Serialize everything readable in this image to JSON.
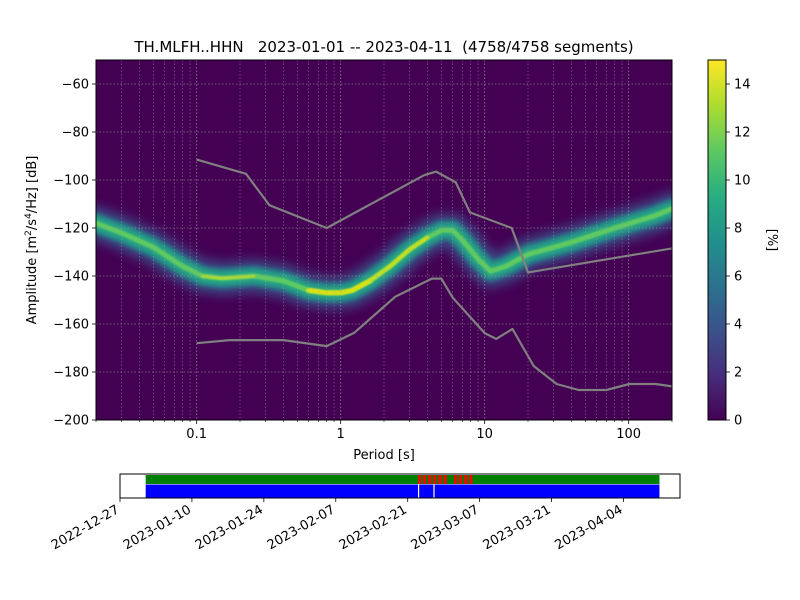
{
  "chart_data": [
    {
      "type": "heatmap",
      "title": "TH.MLFH..HHN   2023-01-01 -- 2023-04-11  (4758/4758 segments)",
      "xlabel": "Period [s]",
      "ylabel_main": "Amplitude [m",
      "ylabel_sup1": "2",
      "ylabel_mid": "/s",
      "ylabel_sup2": "4",
      "ylabel_end": "/Hz] [dB]",
      "xscale": "log",
      "xlim": [
        0.02,
        200
      ],
      "ylim": [
        -200,
        -50
      ],
      "x_ticks": [
        {
          "value": 0.1,
          "label": "0.1"
        },
        {
          "value": 1,
          "label": "1"
        },
        {
          "value": 10,
          "label": "10"
        },
        {
          "value": 100,
          "label": "100"
        }
      ],
      "y_ticks": [
        {
          "value": -60,
          "label": "−60"
        },
        {
          "value": -80,
          "label": "−80"
        },
        {
          "value": -100,
          "label": "−100"
        },
        {
          "value": -120,
          "label": "−120"
        },
        {
          "value": -140,
          "label": "−140"
        },
        {
          "value": -160,
          "label": "−160"
        },
        {
          "value": -180,
          "label": "−180"
        },
        {
          "value": -200,
          "label": "−200"
        }
      ],
      "grid": true,
      "colormap": "viridis",
      "colors": {
        "background": "#440154",
        "model": "#808080",
        "grid": "#9e9e9e"
      },
      "colorbar": {
        "label": "[%]",
        "range": [
          0,
          15
        ],
        "ticks": [
          {
            "value": 0,
            "label": "0"
          },
          {
            "value": 2,
            "label": "2"
          },
          {
            "value": 4,
            "label": "4"
          },
          {
            "value": 6,
            "label": "6"
          },
          {
            "value": 8,
            "label": "8"
          },
          {
            "value": 10,
            "label": "10"
          },
          {
            "value": 12,
            "label": "12"
          },
          {
            "value": 14,
            "label": "14"
          }
        ]
      },
      "psd_mode": [
        [
          0.02,
          -118
        ],
        [
          0.03,
          -122
        ],
        [
          0.05,
          -128
        ],
        [
          0.08,
          -136
        ],
        [
          0.11,
          -140
        ],
        [
          0.15,
          -141
        ],
        [
          0.25,
          -140
        ],
        [
          0.4,
          -142
        ],
        [
          0.6,
          -146
        ],
        [
          0.8,
          -147
        ],
        [
          1.0,
          -147
        ],
        [
          1.2,
          -146
        ],
        [
          1.6,
          -142
        ],
        [
          2.2,
          -136
        ],
        [
          3.0,
          -129
        ],
        [
          4.0,
          -124
        ],
        [
          5.0,
          -121
        ],
        [
          6.0,
          -121
        ],
        [
          7.0,
          -125
        ],
        [
          9.0,
          -133
        ],
        [
          11.0,
          -138
        ],
        [
          14.0,
          -136
        ],
        [
          20.0,
          -131
        ],
        [
          40.0,
          -126
        ],
        [
          80.0,
          -120
        ],
        [
          150.0,
          -115
        ],
        [
          200.0,
          -112
        ]
      ],
      "nhnm": [
        [
          0.1,
          -91.5
        ],
        [
          0.22,
          -97.4
        ],
        [
          0.32,
          -110.5
        ],
        [
          0.8,
          -120.0
        ],
        [
          3.8,
          -98.0
        ],
        [
          4.6,
          -96.5
        ],
        [
          6.3,
          -101.0
        ],
        [
          7.9,
          -113.5
        ],
        [
          15.4,
          -120.0
        ],
        [
          20.0,
          -138.5
        ],
        [
          200.0,
          -128.5
        ]
      ],
      "nlnm": [
        [
          0.1,
          -168.0
        ],
        [
          0.17,
          -166.7
        ],
        [
          0.4,
          -166.7
        ],
        [
          0.8,
          -169.2
        ],
        [
          1.24,
          -163.7
        ],
        [
          2.4,
          -148.6
        ],
        [
          4.3,
          -141.1
        ],
        [
          5.0,
          -141.1
        ],
        [
          6.0,
          -149.0
        ],
        [
          10.0,
          -163.8
        ],
        [
          12.0,
          -166.2
        ],
        [
          15.6,
          -162.1
        ],
        [
          21.9,
          -177.5
        ],
        [
          31.6,
          -185.0
        ],
        [
          45.0,
          -187.5
        ],
        [
          70.0,
          -187.5
        ],
        [
          101.0,
          -185.0
        ],
        [
          154.0,
          -185.0
        ],
        [
          200.0,
          -186.0
        ]
      ]
    },
    {
      "type": "timeline",
      "x_ticks": [
        {
          "date": "2022-12-27",
          "label": "2022-12-27"
        },
        {
          "date": "2023-01-10",
          "label": "2023-01-10"
        },
        {
          "date": "2023-01-24",
          "label": "2023-01-24"
        },
        {
          "date": "2023-02-07",
          "label": "2023-02-07"
        },
        {
          "date": "2023-02-21",
          "label": "2023-02-21"
        },
        {
          "date": "2023-03-07",
          "label": "2023-03-07"
        },
        {
          "date": "2023-03-21",
          "label": "2023-03-21"
        },
        {
          "date": "2023-04-04",
          "label": "2023-04-04"
        }
      ],
      "xlim": [
        "2022-12-27",
        "2023-04-15"
      ],
      "data_range": [
        "2023-01-01",
        "2023-04-11"
      ],
      "colors": {
        "coverage": "#008000",
        "gap": "#ff0000",
        "psd": "#0000ff"
      },
      "gaps": [
        "2023-02-23",
        "2023-02-24",
        "2023-02-25",
        "2023-02-26",
        "2023-02-27",
        "2023-02-28",
        "2023-03-02",
        "2023-03-03",
        "2023-03-04",
        "2023-03-05"
      ],
      "psd_breaks": [
        "2023-02-23",
        "2023-02-26"
      ]
    }
  ]
}
